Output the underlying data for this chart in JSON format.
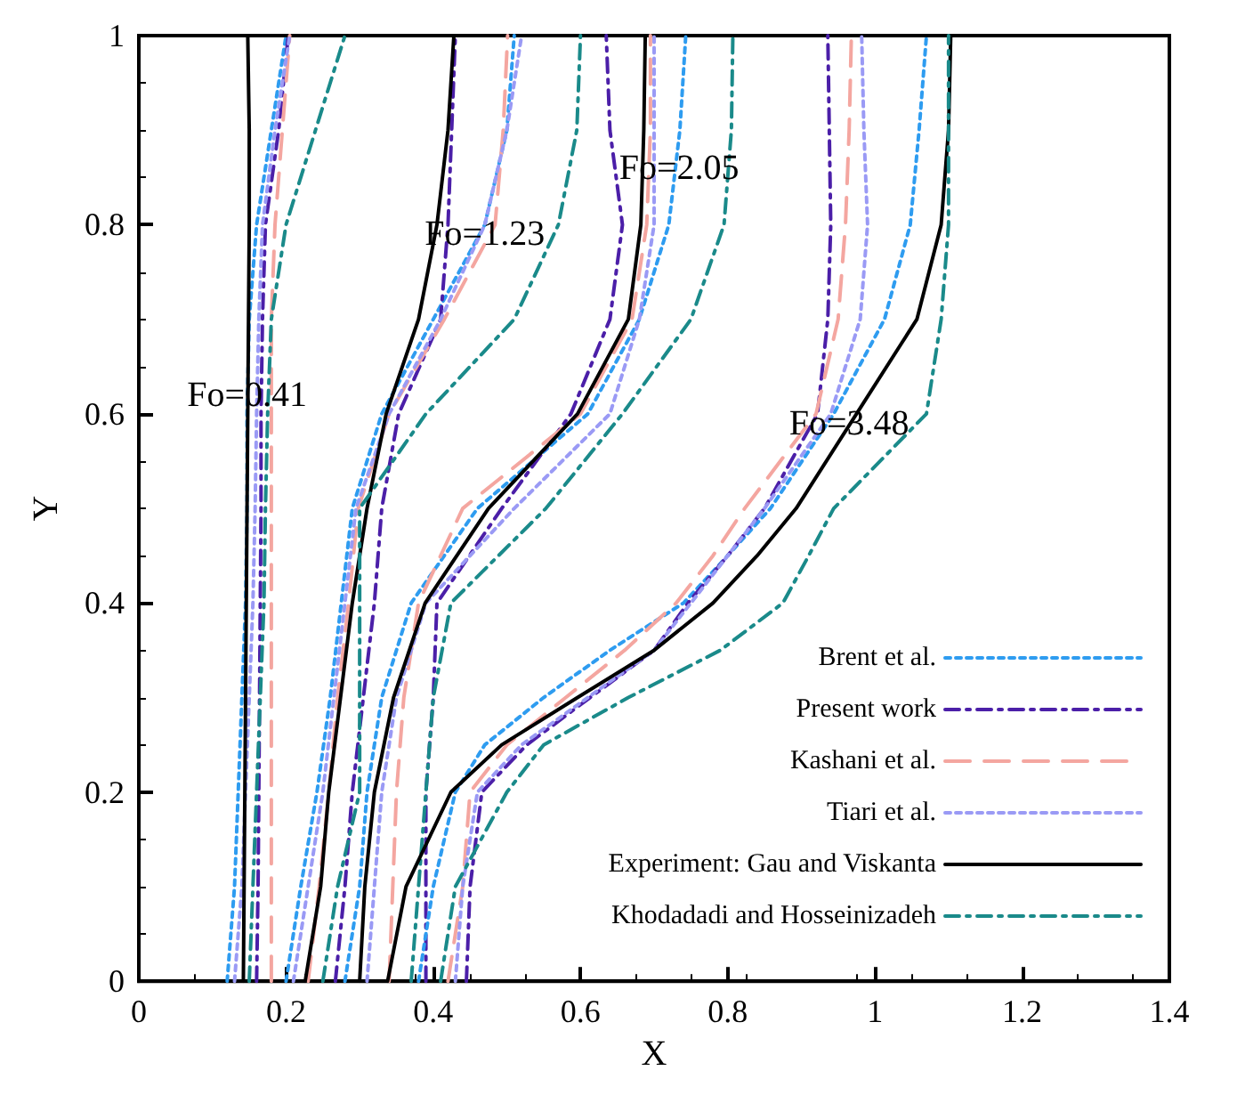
{
  "chart_data": {
    "type": "line",
    "xlabel": "X",
    "ylabel": "Y",
    "xlim": [
      0,
      1.4
    ],
    "xticks": [
      0,
      0.2,
      0.4,
      0.6,
      0.8,
      1,
      1.2,
      1.4
    ],
    "ylim": [
      0,
      1
    ],
    "yticks": [
      0,
      0.2,
      0.4,
      0.6,
      0.8,
      1
    ],
    "grid": false,
    "legend": "bottom right",
    "marker": "none",
    "annotations": [
      {
        "text": "Fo=0.41",
        "x": 0.147,
        "y": 0.62
      },
      {
        "text": "Fo=1.23",
        "x": 0.47,
        "y": 0.79
      },
      {
        "text": "Fo=2.05",
        "x": 0.734,
        "y": 0.86
      },
      {
        "text": "Fo=3.48",
        "x": 0.965,
        "y": 0.59
      }
    ],
    "series": [
      {
        "name": "Brent et al.",
        "color": "#2e9cf0",
        "line_style": "dotted",
        "x": [
          0.12,
          0.13,
          0.135,
          0.14,
          0.145,
          0.147,
          0.147,
          0.15,
          0.16,
          0.18,
          0.2
        ],
        "values": [
          0,
          0.1,
          0.2,
          0.3,
          0.4,
          0.5,
          0.6,
          0.7,
          0.8,
          0.9,
          1
        ]
      },
      {
        "name": "Present work",
        "color": "#4b1fa8",
        "line_style": "dashed",
        "x": [
          0.16,
          0.162,
          0.163,
          0.164,
          0.165,
          0.166,
          0.166,
          0.168,
          0.172,
          0.19,
          0.203
        ],
        "values": [
          0,
          0.1,
          0.2,
          0.3,
          0.4,
          0.5,
          0.6,
          0.7,
          0.8,
          0.9,
          1
        ]
      },
      {
        "name": "Kashani et al.",
        "color": "#f4a6a0",
        "line_style": "dashed",
        "x": [
          0.18,
          0.18,
          0.18,
          0.18,
          0.18,
          0.18,
          0.18,
          0.18,
          0.185,
          0.195,
          0.205
        ],
        "values": [
          0,
          0.1,
          0.2,
          0.3,
          0.4,
          0.5,
          0.6,
          0.7,
          0.8,
          0.9,
          1
        ]
      },
      {
        "name": "Tiari et al.",
        "color": "#9a9af5",
        "line_style": "dotted",
        "x": [
          0.13,
          0.14,
          0.145,
          0.15,
          0.155,
          0.158,
          0.16,
          0.163,
          0.168,
          0.185,
          0.205
        ],
        "values": [
          0,
          0.1,
          0.2,
          0.3,
          0.4,
          0.5,
          0.6,
          0.7,
          0.8,
          0.9,
          1
        ]
      },
      {
        "name": "Experiment: Gau and Viskanta",
        "color": "#000000",
        "line_style": "solid",
        "x": [
          0.142,
          0.143,
          0.144,
          0.145,
          0.146,
          0.147,
          0.148,
          0.149,
          0.15,
          0.15,
          0.148
        ],
        "values": [
          0,
          0.1,
          0.2,
          0.3,
          0.4,
          0.5,
          0.6,
          0.7,
          0.8,
          0.9,
          1
        ]
      },
      {
        "name": "Khodadadi and Hosseinizadeh",
        "color": "#1a8a8a",
        "line_style": "dashed",
        "x": [
          0.15,
          0.155,
          0.16,
          0.165,
          0.17,
          0.172,
          0.175,
          0.18,
          0.2,
          0.24,
          0.28
        ],
        "values": [
          0,
          0.1,
          0.2,
          0.3,
          0.4,
          0.5,
          0.6,
          0.7,
          0.8,
          0.9,
          1
        ]
      },
      {
        "color": "#2e9cf0",
        "line_style": "dotted",
        "x": [
          0.2,
          0.22,
          0.242,
          0.26,
          0.275,
          0.29,
          0.33,
          0.4,
          0.47,
          0.5,
          0.51
        ],
        "values": [
          0,
          0.1,
          0.2,
          0.3,
          0.4,
          0.5,
          0.6,
          0.7,
          0.8,
          0.9,
          1
        ]
      },
      {
        "color": "#4b1fa8",
        "line_style": "dashed",
        "x": [
          0.267,
          0.28,
          0.29,
          0.305,
          0.32,
          0.33,
          0.353,
          0.41,
          0.42,
          0.425,
          0.43
        ],
        "values": [
          0,
          0.1,
          0.2,
          0.3,
          0.4,
          0.5,
          0.6,
          0.7,
          0.8,
          0.9,
          1
        ]
      },
      {
        "color": "#f4a6a0",
        "line_style": "dashed",
        "x": [
          0.23,
          0.245,
          0.258,
          0.27,
          0.285,
          0.298,
          0.34,
          0.415,
          0.484,
          0.495,
          0.501
        ],
        "values": [
          0,
          0.1,
          0.2,
          0.3,
          0.4,
          0.5,
          0.6,
          0.7,
          0.8,
          0.9,
          1
        ]
      },
      {
        "color": "#9a9af5",
        "line_style": "dotted",
        "x": [
          0.21,
          0.23,
          0.25,
          0.265,
          0.28,
          0.295,
          0.34,
          0.41,
          0.47,
          0.5,
          0.52
        ],
        "values": [
          0,
          0.1,
          0.2,
          0.3,
          0.4,
          0.5,
          0.6,
          0.7,
          0.8,
          0.9,
          1
        ]
      },
      {
        "color": "#000000",
        "line_style": "solid",
        "x": [
          0.226,
          0.247,
          0.258,
          0.274,
          0.29,
          0.31,
          0.336,
          0.38,
          0.405,
          0.42,
          0.428
        ],
        "values": [
          0,
          0.1,
          0.2,
          0.3,
          0.4,
          0.5,
          0.6,
          0.7,
          0.8,
          0.9,
          1
        ]
      },
      {
        "color": "#1a8a8a",
        "line_style": "dashed",
        "x": [
          0.25,
          0.27,
          0.3,
          0.3,
          0.3,
          0.3,
          0.39,
          0.51,
          0.57,
          0.595,
          0.6
        ],
        "values": [
          0,
          0.1,
          0.2,
          0.3,
          0.4,
          0.5,
          0.6,
          0.7,
          0.8,
          0.9,
          1
        ]
      },
      {
        "color": "#2e9cf0",
        "line_style": "dotted",
        "x": [
          0.28,
          0.3,
          0.31,
          0.33,
          0.37,
          0.46,
          0.61,
          0.68,
          0.72,
          0.735,
          0.743
        ],
        "values": [
          0,
          0.1,
          0.2,
          0.3,
          0.4,
          0.5,
          0.6,
          0.7,
          0.8,
          0.9,
          1
        ]
      },
      {
        "color": "#4b1fa8",
        "line_style": "dashed",
        "x": [
          0.39,
          0.39,
          0.39,
          0.4,
          0.405,
          0.493,
          0.587,
          0.64,
          0.657,
          0.64,
          0.635
        ],
        "values": [
          0,
          0.1,
          0.2,
          0.3,
          0.4,
          0.5,
          0.6,
          0.7,
          0.8,
          0.9,
          1
        ]
      },
      {
        "color": "#f4a6a0",
        "line_style": "dashed",
        "x": [
          0.34,
          0.345,
          0.35,
          0.36,
          0.38,
          0.44,
          0.6,
          0.67,
          0.69,
          0.695,
          0.695
        ],
        "values": [
          0,
          0.1,
          0.2,
          0.3,
          0.4,
          0.5,
          0.6,
          0.7,
          0.8,
          0.9,
          1
        ]
      },
      {
        "color": "#9a9af5",
        "line_style": "dotted",
        "x": [
          0.31,
          0.32,
          0.33,
          0.35,
          0.39,
          0.51,
          0.64,
          0.68,
          0.7,
          0.7,
          0.7
        ],
        "values": [
          0,
          0.1,
          0.2,
          0.3,
          0.4,
          0.5,
          0.6,
          0.7,
          0.8,
          0.9,
          1
        ]
      },
      {
        "color": "#000000",
        "line_style": "solid",
        "x": [
          0.3,
          0.307,
          0.32,
          0.346,
          0.389,
          0.475,
          0.596,
          0.665,
          0.682,
          0.686,
          0.688
        ],
        "values": [
          0,
          0.1,
          0.2,
          0.3,
          0.4,
          0.5,
          0.6,
          0.7,
          0.8,
          0.9,
          1
        ]
      },
      {
        "color": "#1a8a8a",
        "line_style": "dashed",
        "x": [
          0.37,
          0.38,
          0.39,
          0.4,
          0.424,
          0.553,
          0.657,
          0.75,
          0.795,
          0.805,
          0.807
        ],
        "values": [
          0,
          0.1,
          0.2,
          0.3,
          0.4,
          0.5,
          0.6,
          0.7,
          0.8,
          0.9,
          1
        ]
      },
      {
        "color": "#2e9cf0",
        "line_style": "dotted",
        "x": [
          0.38,
          0.4,
          0.43,
          0.47,
          0.55,
          0.64,
          0.74,
          0.8,
          0.858,
          0.944,
          1.013,
          1.048,
          1.06,
          1.07
        ],
        "values": [
          0,
          0.1,
          0.2,
          0.25,
          0.3,
          0.35,
          0.4,
          0.45,
          0.5,
          0.6,
          0.7,
          0.8,
          0.9,
          1
        ]
      },
      {
        "color": "#4b1fa8",
        "line_style": "dashed",
        "x": [
          0.445,
          0.45,
          0.466,
          0.527,
          0.613,
          0.7,
          0.746,
          0.8,
          0.85,
          0.922,
          0.936,
          0.94,
          0.938,
          0.936
        ],
        "values": [
          0,
          0.1,
          0.2,
          0.25,
          0.3,
          0.35,
          0.4,
          0.45,
          0.5,
          0.6,
          0.7,
          0.8,
          0.9,
          1
        ]
      },
      {
        "color": "#f4a6a0",
        "line_style": "dashed",
        "x": [
          0.42,
          0.44,
          0.45,
          0.5,
          0.58,
          0.66,
          0.73,
          0.78,
          0.823,
          0.92,
          0.95,
          0.96,
          0.965,
          0.968
        ],
        "values": [
          0,
          0.1,
          0.2,
          0.25,
          0.3,
          0.35,
          0.4,
          0.45,
          0.5,
          0.6,
          0.7,
          0.8,
          0.9,
          1
        ]
      },
      {
        "color": "#9a9af5",
        "line_style": "dotted",
        "x": [
          0.43,
          0.44,
          0.46,
          0.52,
          0.61,
          0.7,
          0.75,
          0.8,
          0.85,
          0.94,
          0.98,
          0.99,
          0.985,
          0.982
        ],
        "values": [
          0,
          0.1,
          0.2,
          0.25,
          0.3,
          0.35,
          0.4,
          0.45,
          0.5,
          0.6,
          0.7,
          0.8,
          0.9,
          1
        ]
      },
      {
        "color": "#000000",
        "line_style": "solid",
        "x": [
          0.338,
          0.363,
          0.424,
          0.493,
          0.596,
          0.7,
          0.78,
          0.84,
          0.893,
          0.975,
          1.057,
          1.09,
          1.1,
          1.103
        ],
        "values": [
          0,
          0.1,
          0.2,
          0.25,
          0.3,
          0.35,
          0.4,
          0.45,
          0.5,
          0.6,
          0.7,
          0.8,
          0.9,
          1
        ]
      },
      {
        "color": "#1a8a8a",
        "line_style": "dashed",
        "x": [
          0.41,
          0.43,
          0.5,
          0.55,
          0.665,
          0.79,
          0.875,
          0.91,
          0.944,
          1.07,
          1.09,
          1.1,
          1.1,
          1.1
        ],
        "values": [
          0,
          0.1,
          0.2,
          0.25,
          0.3,
          0.35,
          0.4,
          0.45,
          0.5,
          0.6,
          0.7,
          0.8,
          0.9,
          1
        ]
      }
    ]
  }
}
